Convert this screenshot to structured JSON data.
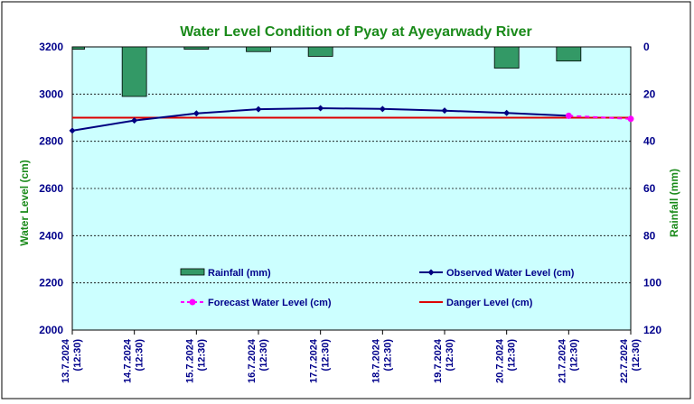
{
  "chart_data": {
    "type": "bar+line",
    "title": "Water Level Condition of Pyay at Ayeyarwady River",
    "ylabel_left": "Water Level (cm)",
    "ylabel_right": "Rainfall (mm)",
    "xlabel": "",
    "categories": [
      [
        "13.7.2024",
        "(12:30)"
      ],
      [
        "14.7.2024",
        "(12:30)"
      ],
      [
        "15.7.2024",
        "(12:30)"
      ],
      [
        "16.7.2024",
        "(12:30)"
      ],
      [
        "17.7.2024",
        "(12:30)"
      ],
      [
        "18.7.2024",
        "(12:30)"
      ],
      [
        "19.7.2024",
        "(12:30)"
      ],
      [
        "20.7.2024",
        "(12:30)"
      ],
      [
        "21.7.2024",
        "(12:30)"
      ],
      [
        "22.7.2024",
        "(12:30)"
      ]
    ],
    "ylim_left": [
      2000,
      3200
    ],
    "ylim_right": [
      0,
      120
    ],
    "yticks_left": [
      2000,
      2200,
      2400,
      2600,
      2800,
      3000,
      3200
    ],
    "yticks_right": [
      0,
      20,
      40,
      60,
      80,
      100,
      120
    ],
    "right_axis_inverted": true,
    "grid": true,
    "series": [
      {
        "name": "Rainfall (mm)",
        "kind": "bar",
        "axis": "right",
        "color": "#339966",
        "values": [
          1,
          21,
          1,
          2,
          4,
          0,
          0,
          9,
          6,
          0
        ]
      },
      {
        "name": "Observed Water Level (cm)",
        "kind": "line",
        "axis": "left",
        "color": "#000080",
        "marker": "diamond",
        "values": [
          2845,
          2888,
          2918,
          2936,
          2940,
          2937,
          2930,
          2920,
          2908,
          null
        ]
      },
      {
        "name": "Forecast Water Level (cm)",
        "kind": "line",
        "axis": "left",
        "color": "#ff00ff",
        "dashed": true,
        "marker": "circle",
        "values": [
          null,
          null,
          null,
          null,
          null,
          null,
          null,
          null,
          2908,
          2895
        ]
      },
      {
        "name": "Danger Level (cm)",
        "kind": "line",
        "axis": "left",
        "color": "#dd0000",
        "values": [
          2900,
          2900,
          2900,
          2900,
          2900,
          2900,
          2900,
          2900,
          2900,
          2900
        ]
      }
    ],
    "legend": [
      {
        "label": "Rainfall (mm)",
        "series": 0
      },
      {
        "label": "Observed Water Level (cm)",
        "series": 1
      },
      {
        "label": "Forecast Water Level (cm)",
        "series": 2
      },
      {
        "label": "Danger Level (cm)",
        "series": 3
      }
    ],
    "legend_placement": "inside-bottom"
  }
}
